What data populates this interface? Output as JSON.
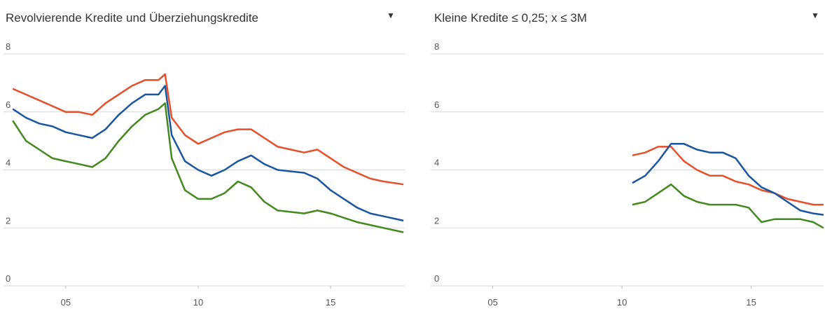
{
  "chart_data": [
    {
      "type": "line",
      "title": "Revolvierende Kredite und Überziehungskredite",
      "menu_icon": "▼",
      "x": [
        2003,
        2003.5,
        2004,
        2004.5,
        2005,
        2005.5,
        2006,
        2006.5,
        2007,
        2007.5,
        2008,
        2008.5,
        2008.75,
        2009,
        2009.5,
        2010,
        2010.5,
        2011,
        2011.5,
        2012,
        2012.5,
        2013,
        2013.5,
        2014,
        2014.5,
        2015,
        2015.5,
        2016,
        2016.5,
        2017,
        2017.75
      ],
      "series": [
        {
          "color": "#e4502a",
          "values": [
            6.8,
            6.6,
            6.4,
            6.2,
            6.0,
            6.0,
            5.9,
            6.3,
            6.6,
            6.9,
            7.1,
            7.1,
            7.3,
            5.8,
            5.2,
            4.9,
            5.1,
            5.3,
            5.4,
            5.4,
            5.1,
            4.8,
            4.7,
            4.6,
            4.7,
            4.4,
            4.1,
            3.9,
            3.7,
            3.6,
            3.5
          ]
        },
        {
          "color": "#1a56a0",
          "values": [
            6.1,
            5.8,
            5.6,
            5.5,
            5.3,
            5.2,
            5.1,
            5.4,
            5.9,
            6.3,
            6.6,
            6.6,
            6.9,
            5.2,
            4.3,
            4.0,
            3.8,
            4.0,
            4.3,
            4.5,
            4.2,
            4.0,
            3.95,
            3.9,
            3.7,
            3.3,
            3.0,
            2.7,
            2.5,
            2.4,
            2.25
          ]
        },
        {
          "color": "#43891f",
          "values": [
            5.7,
            5.0,
            4.7,
            4.4,
            4.3,
            4.2,
            4.1,
            4.4,
            5.0,
            5.5,
            5.9,
            6.1,
            6.3,
            4.4,
            3.3,
            3.0,
            3.0,
            3.2,
            3.6,
            3.4,
            2.9,
            2.6,
            2.55,
            2.5,
            2.6,
            2.5,
            2.35,
            2.2,
            2.1,
            2.0,
            1.85
          ]
        }
      ],
      "xlim": [
        2002.65,
        2017.8
      ],
      "ylim": [
        0,
        8
      ],
      "yticks": [
        0,
        2,
        4,
        6,
        8
      ],
      "xticks": [
        {
          "value": 2005,
          "label": "05"
        },
        {
          "value": 2010,
          "label": "10"
        },
        {
          "value": 2015,
          "label": "15"
        }
      ],
      "grid": true
    },
    {
      "type": "line",
      "title": "Kleine Kredite ≤ 0,25; x ≤ 3M",
      "menu_icon": "▼",
      "x": [
        2010.4,
        2010.9,
        2011.4,
        2011.9,
        2012.4,
        2012.9,
        2013.4,
        2013.9,
        2014.4,
        2014.9,
        2015.4,
        2015.9,
        2016.4,
        2016.9,
        2017.4,
        2017.8
      ],
      "series": [
        {
          "color": "#e4502a",
          "values": [
            4.5,
            4.6,
            4.8,
            4.8,
            4.3,
            4.0,
            3.8,
            3.8,
            3.6,
            3.5,
            3.3,
            3.2,
            3.0,
            2.9,
            2.8,
            2.8
          ]
        },
        {
          "color": "#1a56a0",
          "values": [
            3.55,
            3.8,
            4.3,
            4.9,
            4.9,
            4.7,
            4.6,
            4.6,
            4.4,
            3.8,
            3.4,
            3.2,
            2.9,
            2.6,
            2.5,
            2.45
          ]
        },
        {
          "color": "#43891f",
          "values": [
            2.8,
            2.9,
            3.2,
            3.5,
            3.1,
            2.9,
            2.8,
            2.8,
            2.8,
            2.7,
            2.2,
            2.3,
            2.3,
            2.3,
            2.2,
            2.0
          ]
        }
      ],
      "xlim": [
        2002.6,
        2017.8
      ],
      "ylim": [
        0,
        8
      ],
      "yticks": [
        0,
        2,
        4,
        6,
        8
      ],
      "xticks": [
        {
          "value": 2005,
          "label": "05"
        },
        {
          "value": 2010,
          "label": "10"
        },
        {
          "value": 2015,
          "label": "15"
        }
      ],
      "grid": true
    }
  ]
}
